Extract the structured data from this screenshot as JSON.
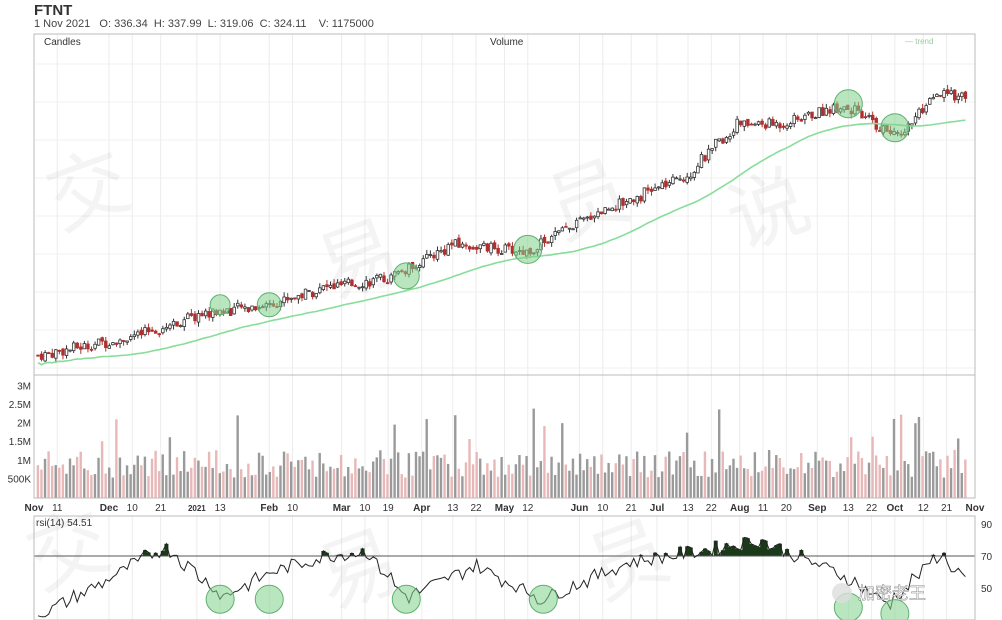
{
  "header": {
    "ticker": "FTNT",
    "ohlc_text": "1 Nov 2021   O: 336.34  H: 337.99  L: 319.06  C: 324.11    V: 1175000"
  },
  "legend": {
    "candles": "Candles",
    "volume": "Volume",
    "trend": "— trend"
  },
  "chart_data": [
    {
      "type": "candlestick",
      "name": "Candles",
      "x_range": [
        "2020-11-02",
        "2021-11-01"
      ],
      "x_tick_labels": [
        "Nov",
        "11",
        "Dec",
        "10",
        "21",
        "2021",
        "13",
        "Feb",
        "10",
        "Mar",
        "10",
        "19",
        "Apr",
        "13",
        "22",
        "May",
        "12",
        "Jun",
        "10",
        "21",
        "Jul",
        "13",
        "22",
        "Aug",
        "11",
        "20",
        "Sep",
        "13",
        "22",
        "Oct",
        "12",
        "21",
        "Nov"
      ],
      "approx_close": [
        {
          "x": "2020-11-02",
          "y": 108
        },
        {
          "x": "2020-11-20",
          "y": 116
        },
        {
          "x": "2020-12-10",
          "y": 124
        },
        {
          "x": "2021-01-04",
          "y": 142
        },
        {
          "x": "2021-01-29",
          "y": 150
        },
        {
          "x": "2021-02-22",
          "y": 164
        },
        {
          "x": "2021-03-19",
          "y": 172
        },
        {
          "x": "2021-04-13",
          "y": 200
        },
        {
          "x": "2021-05-12",
          "y": 194
        },
        {
          "x": "2021-06-10",
          "y": 228
        },
        {
          "x": "2021-07-13",
          "y": 256
        },
        {
          "x": "2021-08-03",
          "y": 300
        },
        {
          "x": "2021-08-20",
          "y": 300
        },
        {
          "x": "2021-09-13",
          "y": 316
        },
        {
          "x": "2021-10-04",
          "y": 290
        },
        {
          "x": "2021-10-21",
          "y": 324
        },
        {
          "x": "2021-11-01",
          "y": 324.11
        }
      ],
      "last": {
        "open": 336.34,
        "high": 337.99,
        "low": 319.06,
        "close": 324.11,
        "volume": 1175000
      }
    },
    {
      "type": "bar",
      "name": "Volume",
      "y_ticks": [
        "3M",
        "2.5M",
        "2M",
        "1.5M",
        "1M",
        "500K"
      ],
      "ylim": [
        0,
        3200000
      ]
    },
    {
      "type": "line",
      "name": "rsi(14) 54.51",
      "y_ticks": [
        "90",
        "70",
        "50"
      ],
      "ylim": [
        30,
        95
      ],
      "threshold": 70,
      "approx_values": [
        {
          "x": "2020-11-02",
          "y": 33
        },
        {
          "x": "2020-11-25",
          "y": 52
        },
        {
          "x": "2020-12-21",
          "y": 76
        },
        {
          "x": "2021-01-13",
          "y": 45
        },
        {
          "x": "2021-02-01",
          "y": 60
        },
        {
          "x": "2021-02-22",
          "y": 70
        },
        {
          "x": "2021-03-10",
          "y": 73
        },
        {
          "x": "2021-03-26",
          "y": 44
        },
        {
          "x": "2021-04-22",
          "y": 64
        },
        {
          "x": "2021-05-18",
          "y": 43
        },
        {
          "x": "2021-06-21",
          "y": 66
        },
        {
          "x": "2021-07-22",
          "y": 74
        },
        {
          "x": "2021-08-11",
          "y": 80
        },
        {
          "x": "2021-09-13",
          "y": 58
        },
        {
          "x": "2021-10-01",
          "y": 40
        },
        {
          "x": "2021-10-21",
          "y": 71
        },
        {
          "x": "2021-11-01",
          "y": 54.51
        }
      ]
    }
  ],
  "watermark": "交易员说",
  "badge": "加密老王",
  "colors": {
    "up": "#333333",
    "down": "#b03030",
    "trend": "#88dd99",
    "ma_down": "#c08080",
    "rsi_fill": "#1a3a1a",
    "vol_grey": "#9a9a9a",
    "vol_pink": "#e8b8b8",
    "highlight": "#7fd08a"
  }
}
